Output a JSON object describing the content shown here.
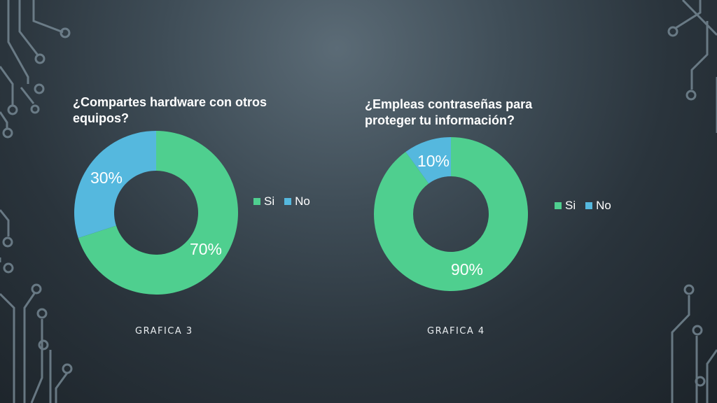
{
  "colors": {
    "si": "#4fcf8f",
    "no": "#55b8de",
    "circuit": "#7f929e"
  },
  "chart_data": [
    {
      "type": "pie",
      "subtype": "donut",
      "title": "¿Compartes hardware con otros equipos?",
      "categories": [
        "Si",
        "No"
      ],
      "values": [
        70,
        30
      ],
      "data_labels": [
        "70%",
        "30%"
      ],
      "colors": [
        "#4fcf8f",
        "#55b8de"
      ],
      "legend": {
        "placement": "right",
        "entries": [
          "Si",
          "No"
        ]
      },
      "caption": "GRAFICA 3"
    },
    {
      "type": "pie",
      "subtype": "donut",
      "title": "¿Empleas contraseñas para proteger tu información?",
      "categories": [
        "Si",
        "No"
      ],
      "values": [
        90,
        10
      ],
      "data_labels": [
        "90%",
        "10%"
      ],
      "colors": [
        "#4fcf8f",
        "#55b8de"
      ],
      "legend": {
        "placement": "right",
        "entries": [
          "Si",
          "No"
        ]
      },
      "caption": "GRAFICA 4"
    }
  ]
}
